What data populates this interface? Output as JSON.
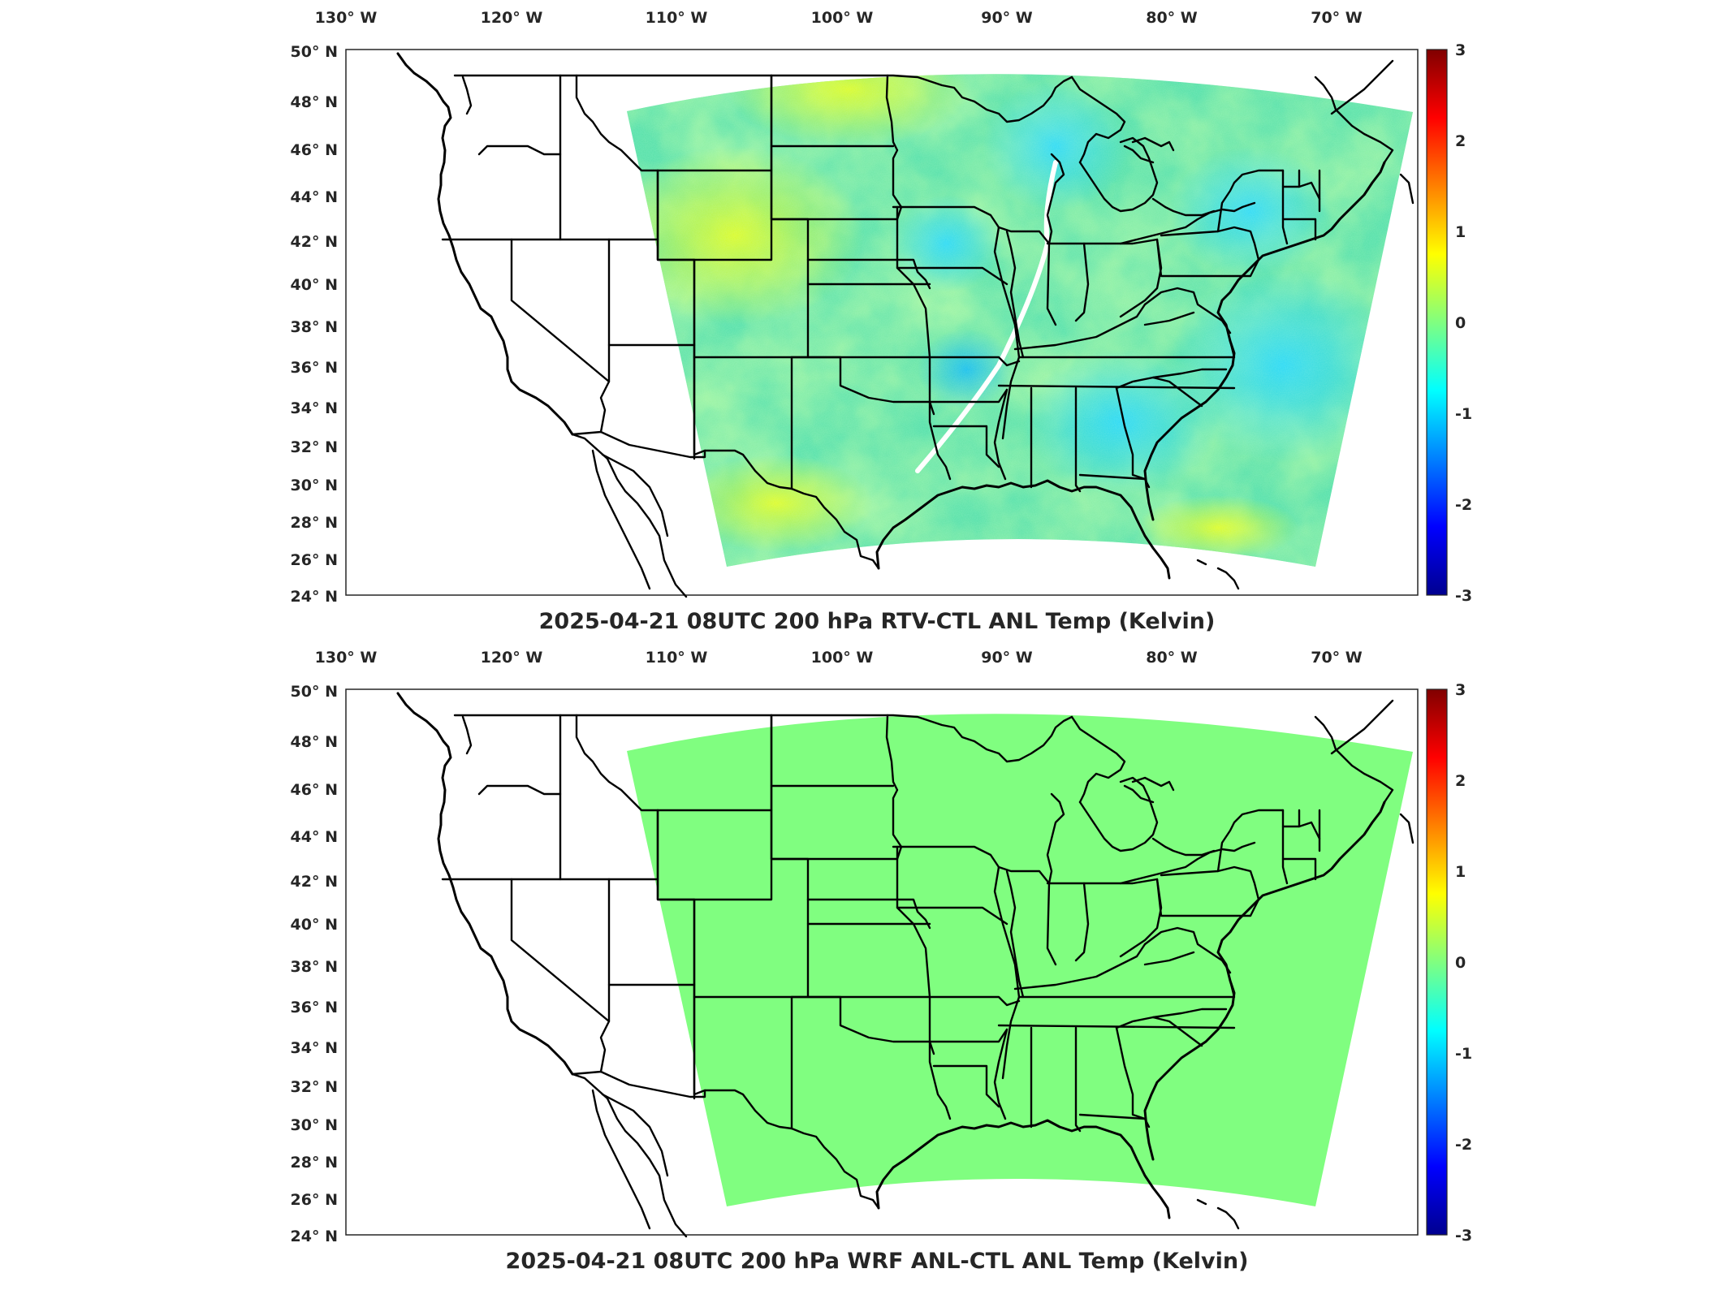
{
  "colors": {
    "colormap": [
      "#00008f",
      "#0000ff",
      "#0080ff",
      "#00ffff",
      "#80ff80",
      "#ffff00",
      "#ff8000",
      "#ff0000",
      "#800000"
    ],
    "flat_field": "#80fe80"
  },
  "axes": {
    "lon_labels": [
      "130° W",
      "120° W",
      "110° W",
      "100° W",
      "90° W",
      "80° W",
      "70° W"
    ],
    "lat_labels": [
      "50° N",
      "48° N",
      "46° N",
      "44° N",
      "42° N",
      "40° N",
      "38° N",
      "36° N",
      "34° N",
      "32° N",
      "30° N",
      "28° N",
      "26° N",
      "24° N"
    ],
    "colorbar_ticks": [
      "3",
      "2",
      "1",
      "0",
      "-1",
      "-2",
      "-3"
    ],
    "colorbar_range": [
      -3,
      3
    ]
  },
  "panels": [
    {
      "title": "2025-04-21 08UTC 200 hPa RTV-CTL ANL Temp (Kelvin)",
      "field": "noisy"
    },
    {
      "title": "2025-04-21 08UTC 200 hPa WRF ANL-CTL ANL Temp (Kelvin)",
      "field": "flat"
    }
  ]
}
